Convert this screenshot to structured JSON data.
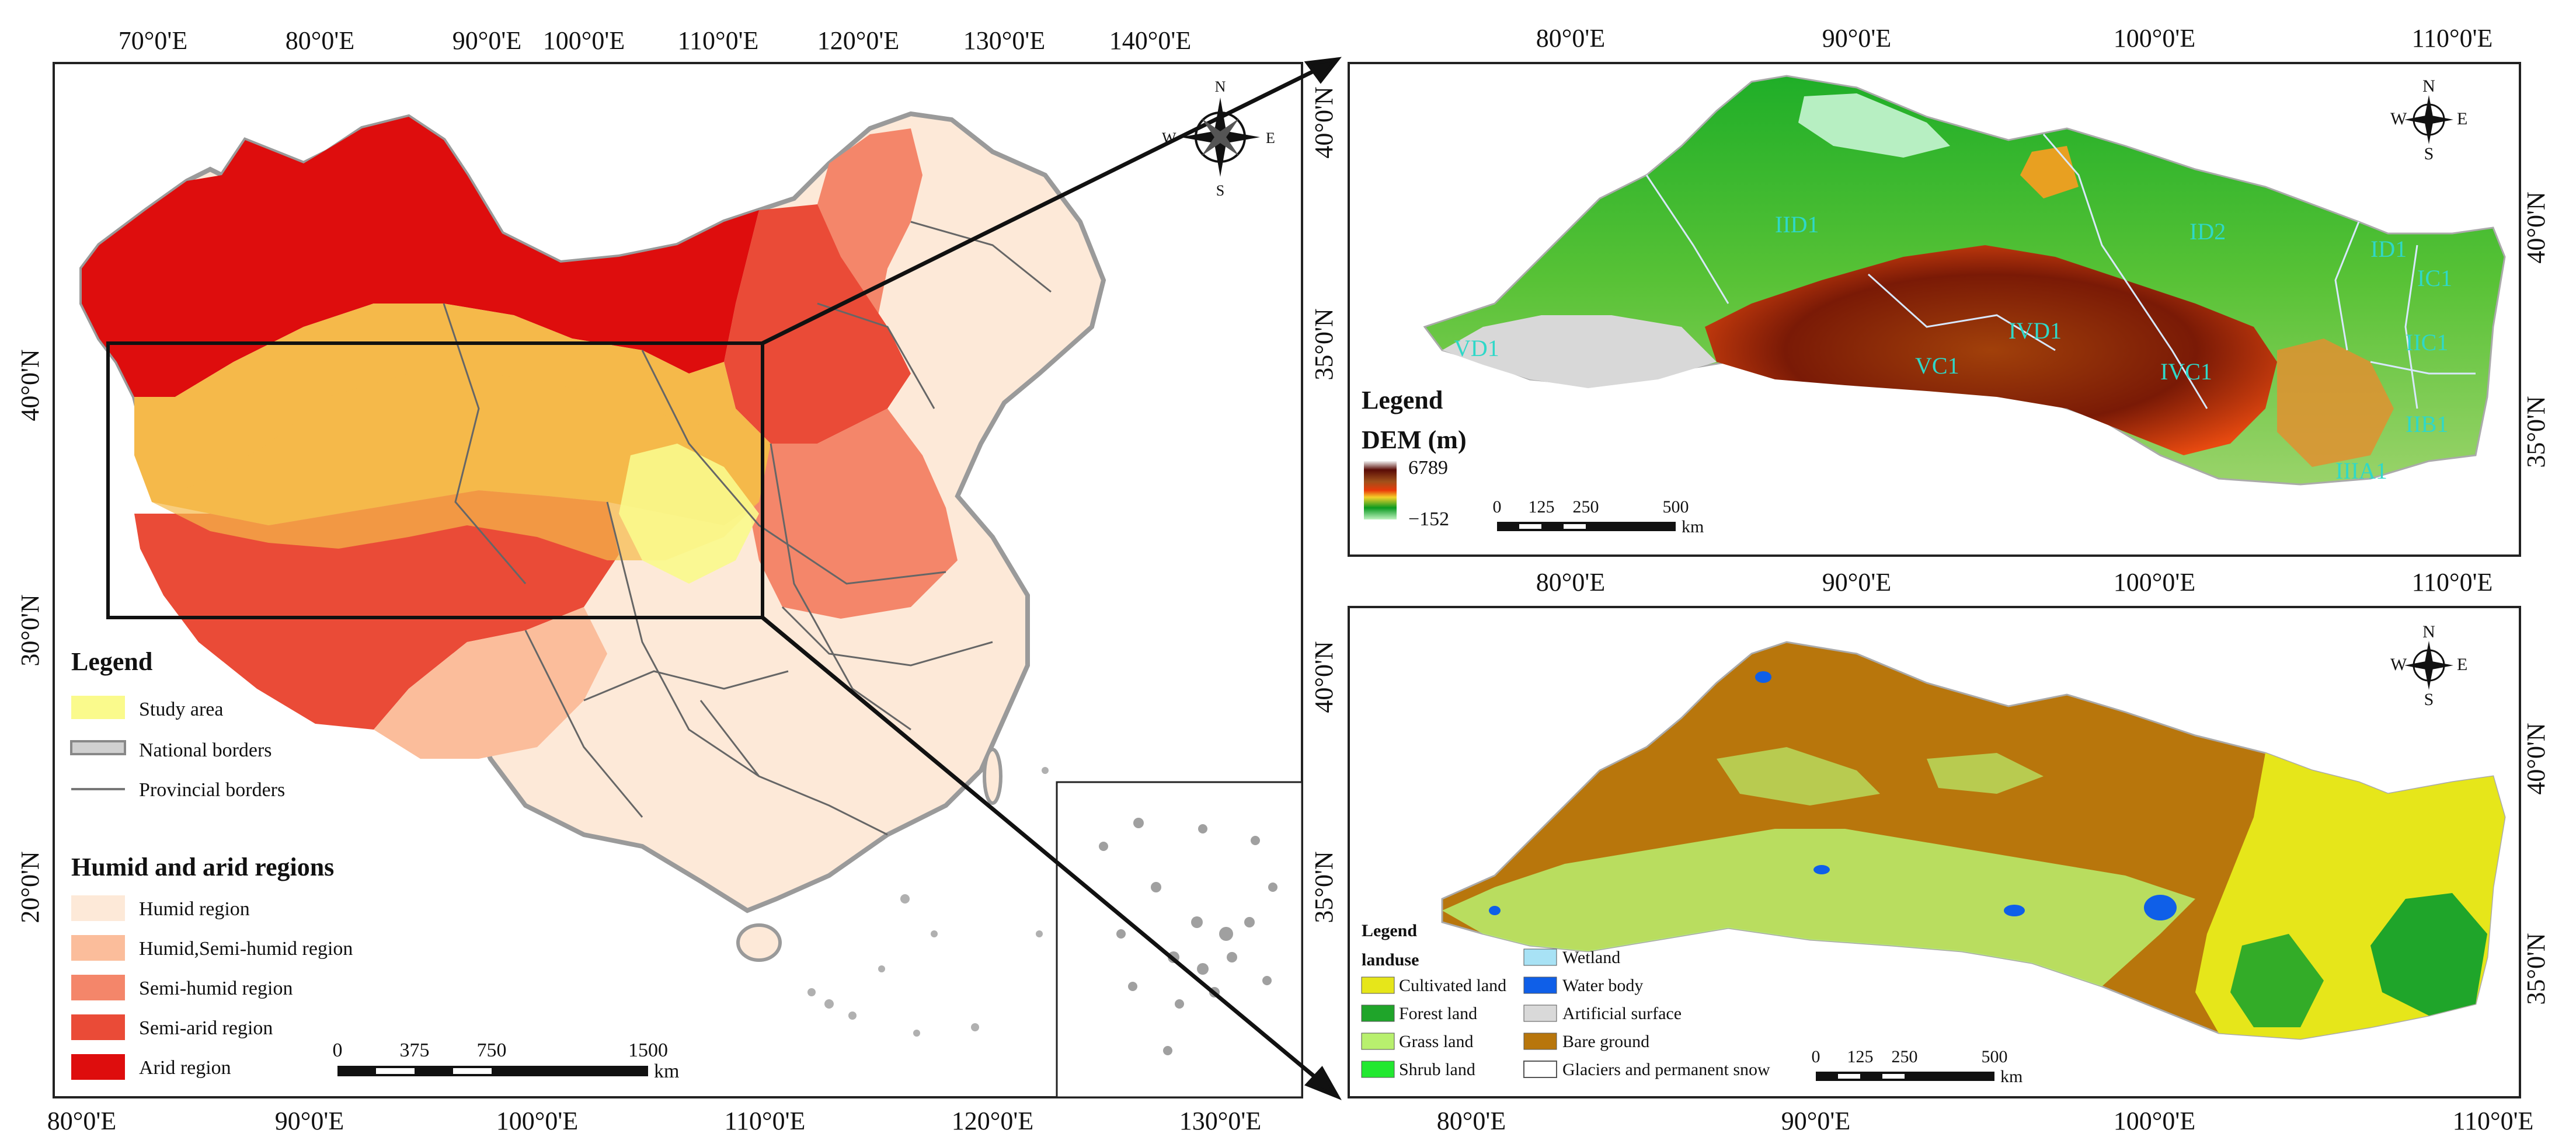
{
  "left_map": {
    "top_ticks": [
      "70°0'E",
      "80°0'E",
      "90°0'E",
      "100°0'E",
      "110°0'E",
      "120°0'E",
      "130°0'E",
      "140°0'E"
    ],
    "bottom_ticks": [
      "80°0'E",
      "90°0'E",
      "100°0'E",
      "110°0'E",
      "120°0'E",
      "130°0'E"
    ],
    "left_ticks": [
      "40°0'N",
      "30°0'N",
      "20°0'N"
    ],
    "compass": {
      "n": "N",
      "s": "S",
      "e": "E",
      "w": "W"
    },
    "legend": {
      "title": "Legend",
      "items": [
        {
          "label": "Study area",
          "color": "#fafa8c"
        },
        {
          "label": "National borders",
          "color": "#9a9a9a"
        },
        {
          "label": "Provincial borders",
          "color": "#7a7a7a"
        }
      ]
    },
    "regions_legend": {
      "title": "Humid and arid regions",
      "items": [
        {
          "label": "Humid region",
          "color": "#fde9d8"
        },
        {
          "label": "Humid,Semi-humid region",
          "color": "#fbbd9b"
        },
        {
          "label": "Semi-humid region",
          "color": "#f4866a"
        },
        {
          "label": "Semi-arid region",
          "color": "#ea4b37"
        },
        {
          "label": "Arid region",
          "color": "#de0d0d"
        }
      ]
    },
    "scale": {
      "labels": [
        "0",
        "375",
        "750",
        "1500"
      ],
      "unit": "km"
    }
  },
  "dem_map": {
    "top_ticks": [
      "80°0'E",
      "90°0'E",
      "100°0'E",
      "110°0'E"
    ],
    "left_ticks": [
      "40°0'N",
      "35°0'N"
    ],
    "right_ticks": [
      "40°0'N",
      "35°0'N"
    ],
    "compass": {
      "n": "N",
      "s": "S",
      "e": "E",
      "w": "W"
    },
    "region_codes": [
      "IID1",
      "ID2",
      "ID1",
      "IC1",
      "IIC1",
      "IIB1",
      "IIIA1",
      "VD1",
      "VC1",
      "IVD1",
      "IVC1"
    ],
    "legend": {
      "title": "Legend",
      "subtitle": "DEM (m)",
      "max": "6789",
      "min": "−152",
      "colors": [
        "#f0f0f0",
        "#5a0c06",
        "#a0501a",
        "#e83a0a",
        "#f5d02a",
        "#0a9a20",
        "#bff2c0"
      ]
    },
    "scale": {
      "labels": [
        "0",
        "125",
        "250",
        "500"
      ],
      "unit": "km"
    }
  },
  "landuse_map": {
    "top_ticks": [
      "80°0'E",
      "90°0'E",
      "100°0'E",
      "110°0'E"
    ],
    "bottom_ticks": [
      "80°0'E",
      "90°0'E",
      "100°0'E",
      "110°0'E"
    ],
    "left_ticks": [
      "40°0'N",
      "35°0'N"
    ],
    "right_ticks": [
      "40°0'N",
      "35°0'N"
    ],
    "compass": {
      "n": "N",
      "s": "S",
      "e": "E",
      "w": "W"
    },
    "legend": {
      "title": "Legend",
      "subtitle": "landuse",
      "items": [
        {
          "label": "Cultivated land",
          "color": "#e6e61a"
        },
        {
          "label": "Forest land",
          "color": "#1fa52a"
        },
        {
          "label": "Grass land",
          "color": "#b8f06e"
        },
        {
          "label": "Shrub land",
          "color": "#22e830"
        },
        {
          "label": "Wetland",
          "color": "#a8e2f5"
        },
        {
          "label": "Water body",
          "color": "#0f5fe8"
        },
        {
          "label": "Artificial surface",
          "color": "#d9d9d9"
        },
        {
          "label": "Bare ground",
          "color": "#b8760c"
        },
        {
          "label": "Glaciers and permanent snow",
          "color": "#ffffff"
        }
      ]
    },
    "scale": {
      "labels": [
        "0",
        "125",
        "250",
        "500"
      ],
      "unit": "km"
    }
  }
}
